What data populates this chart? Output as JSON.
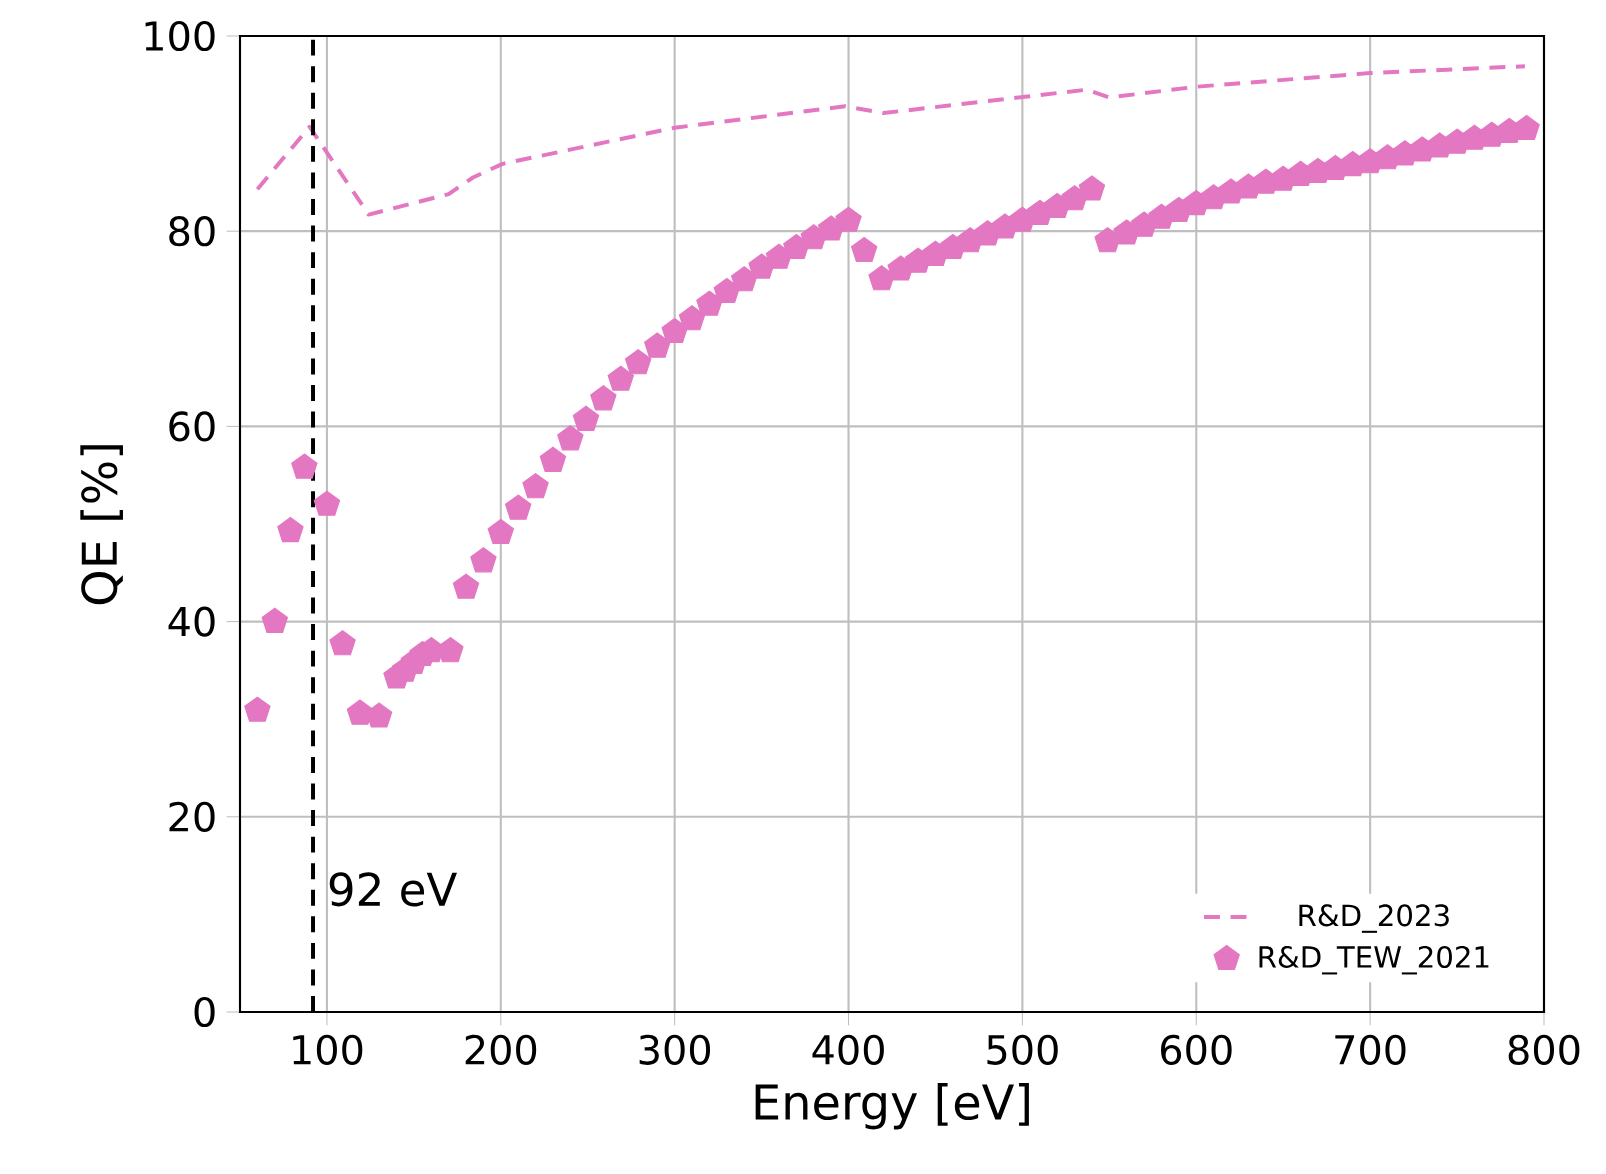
{
  "chart_data": {
    "type": "line",
    "xlabel": "Energy [eV]",
    "ylabel": "QE [%]",
    "xlim": [
      50,
      800
    ],
    "ylim": [
      0,
      100
    ],
    "xticks": [
      100,
      200,
      300,
      400,
      500,
      600,
      700,
      800
    ],
    "yticks": [
      0,
      20,
      40,
      60,
      80,
      100
    ],
    "grid": true,
    "legend": "bottom right",
    "ref_lines": [
      {
        "axis": "x",
        "value": 92,
        "label": "92 eV",
        "color": "#000000",
        "line_style": "dashed"
      }
    ],
    "series": [
      {
        "name": "R&D_2023",
        "color": "#e377c2",
        "line_style": "dashed",
        "marker": "none",
        "x": [
          60,
          90,
          124,
          170,
          184,
          201,
          300,
          398,
          420,
          537,
          550,
          600,
          700,
          789
        ],
        "values": [
          84.3,
          90.7,
          81.7,
          83.8,
          85.5,
          86.9,
          90.6,
          92.8,
          92.1,
          94.5,
          93.7,
          94.8,
          96.2,
          96.9
        ]
      },
      {
        "name": "R&D_TEW_2021",
        "type": "scatter",
        "color": "#e377c2",
        "x": [
          60,
          70,
          79,
          87,
          100,
          109,
          119,
          130,
          140,
          145,
          150,
          155,
          160,
          171,
          180,
          190,
          200,
          210,
          220,
          230,
          240,
          249,
          259,
          269,
          279,
          290,
          300,
          310,
          320,
          330,
          340,
          350,
          360,
          370,
          380,
          390,
          400,
          409,
          419,
          430,
          440,
          450,
          460,
          470,
          480,
          490,
          500,
          510,
          520,
          530,
          540,
          549,
          560,
          570,
          580,
          590,
          600,
          610,
          620,
          630,
          640,
          650,
          660,
          670,
          680,
          690,
          700,
          710,
          720,
          730,
          740,
          750,
          760,
          770,
          780,
          790
        ],
        "values": [
          30.9,
          40,
          49.3,
          55.8,
          52,
          37.7,
          30.6,
          30.3,
          34.3,
          35,
          35.8,
          36.6,
          37,
          37,
          43.5,
          46.2,
          49.1,
          51.6,
          53.8,
          56.5,
          58.7,
          60.7,
          62.8,
          64.8,
          66.5,
          68.2,
          69.7,
          71,
          72.5,
          73.8,
          75,
          76.3,
          77.3,
          78.3,
          79.3,
          80.2,
          81.1,
          78,
          75.1,
          76.1,
          76.9,
          77.6,
          78.3,
          79,
          79.7,
          80.4,
          81.1,
          81.8,
          82.5,
          83.3,
          84.3,
          79,
          79.8,
          80.6,
          81.4,
          82.1,
          82.8,
          83.4,
          84,
          84.5,
          85,
          85.3,
          85.8,
          86.1,
          86.4,
          86.8,
          87.1,
          87.5,
          87.9,
          88.3,
          88.7,
          89.1,
          89.5,
          89.8,
          90.2,
          90.5
        ]
      }
    ]
  }
}
